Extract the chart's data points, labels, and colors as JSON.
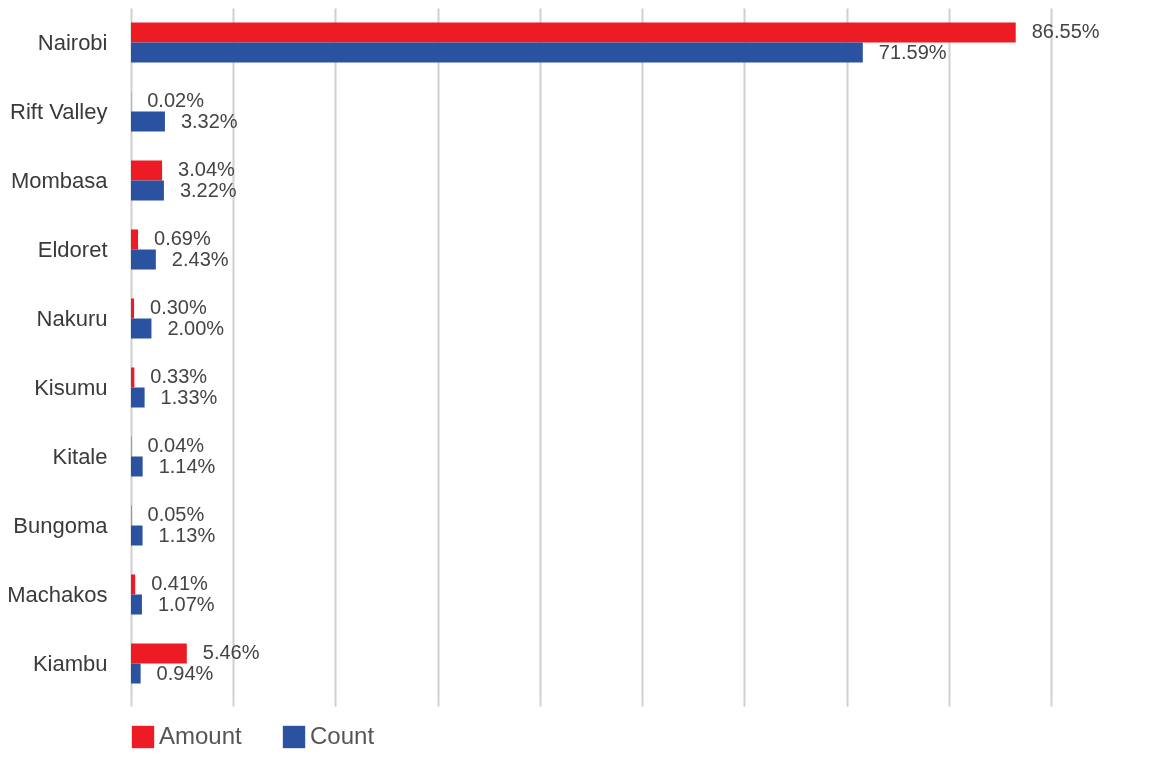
{
  "chart_data": {
    "type": "bar",
    "orientation": "horizontal",
    "categories": [
      "Nairobi",
      "Rift Valley",
      "Mombasa",
      "Eldoret",
      "Nakuru",
      "Kisumu",
      "Kitale",
      "Bungoma",
      "Machakos",
      "Kiambu"
    ],
    "series": [
      {
        "name": "Amount",
        "color": "#ed1c24",
        "values": [
          86.55,
          0.02,
          3.04,
          0.69,
          0.3,
          0.33,
          0.04,
          0.05,
          0.41,
          5.46
        ],
        "value_labels": [
          "86.55%",
          "0.02%",
          "3.04%",
          "0.69%",
          "0.30%",
          "0.33%",
          "0.04%",
          "0.05%",
          "0.41%",
          "5.46%"
        ]
      },
      {
        "name": "Count",
        "color": "#2a52a0",
        "values": [
          71.59,
          3.32,
          3.22,
          2.43,
          2.0,
          1.33,
          1.14,
          1.13,
          1.07,
          0.94
        ],
        "value_labels": [
          "71.59%",
          "3.32%",
          "3.22%",
          "2.43%",
          "2.00%",
          "1.33%",
          "1.14%",
          "1.13%",
          "1.07%",
          "0.94%"
        ]
      }
    ],
    "xlim": [
      0,
      90
    ],
    "xticks": [
      {
        "value": 0,
        "label": null
      },
      {
        "value": 10,
        "label": null
      },
      {
        "value": 20,
        "label": null
      },
      {
        "value": 30,
        "label": null
      },
      {
        "value": 40,
        "label": null
      },
      {
        "value": 50,
        "label": null
      },
      {
        "value": 60,
        "label": null
      },
      {
        "value": 70,
        "label": null
      },
      {
        "value": 80,
        "label": null
      },
      {
        "value": 90,
        "label": null
      }
    ],
    "grid": "x",
    "legend": "bottom",
    "tick_labels": "y"
  }
}
